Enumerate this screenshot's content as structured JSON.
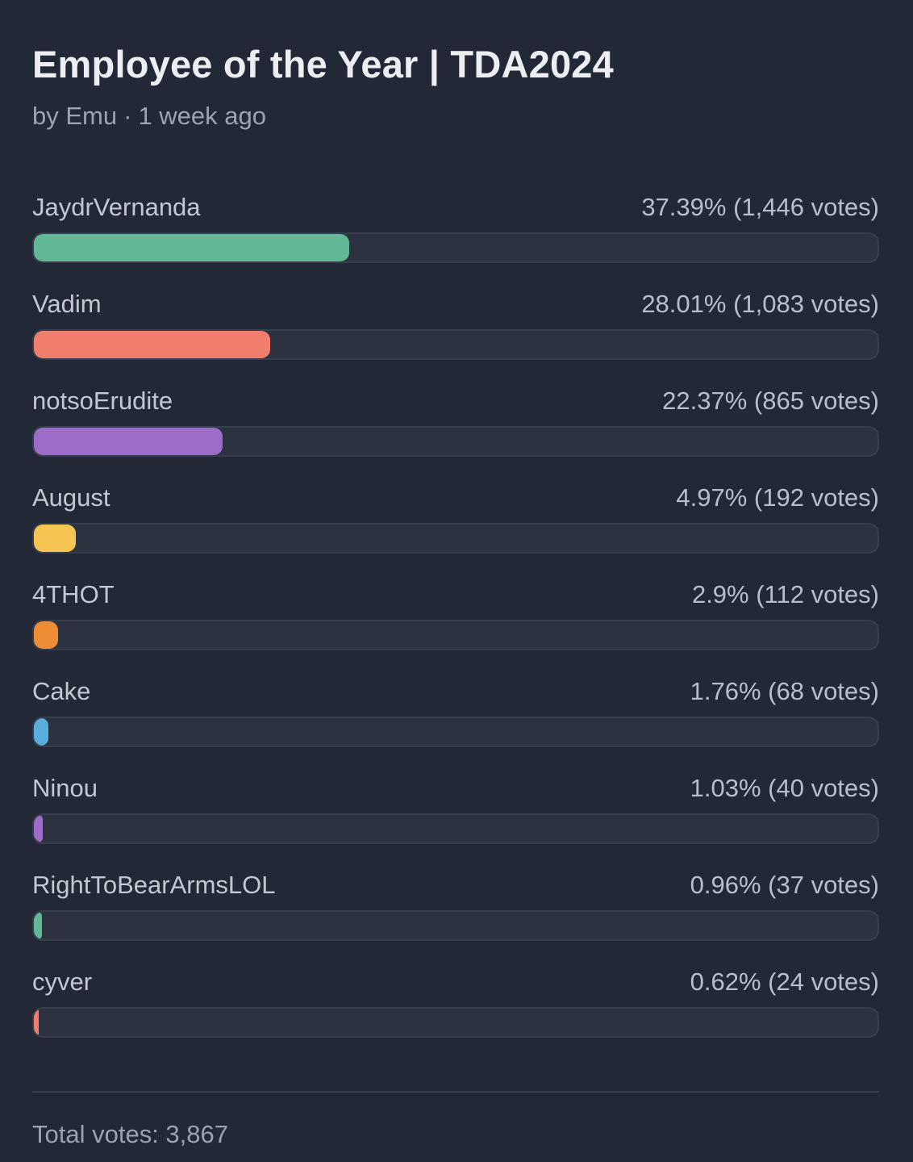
{
  "poll": {
    "title": "Employee of the Year | TDA2024",
    "author": "by Emu",
    "separator": "·",
    "time": "1 week ago",
    "total_label": "Total votes: 3,867"
  },
  "options": [
    {
      "name": "JaydrVernanda",
      "result": "37.39% (1,446 votes)",
      "percent": 37.39,
      "color": "#62b896"
    },
    {
      "name": "Vadim",
      "result": "28.01% (1,083 votes)",
      "percent": 28.01,
      "color": "#f07e6c"
    },
    {
      "name": "notsoErudite",
      "result": "22.37% (865 votes)",
      "percent": 22.37,
      "color": "#9d6bc8"
    },
    {
      "name": "August",
      "result": "4.97% (192 votes)",
      "percent": 4.97,
      "color": "#f6c453"
    },
    {
      "name": "4THOT",
      "result": "2.9% (112 votes)",
      "percent": 2.9,
      "color": "#ee8d36"
    },
    {
      "name": "Cake",
      "result": "1.76% (68 votes)",
      "percent": 1.76,
      "color": "#5aaedd"
    },
    {
      "name": "Ninou",
      "result": "1.03% (40 votes)",
      "percent": 1.03,
      "color": "#9d6bc8"
    },
    {
      "name": "RightToBearArmsLOL",
      "result": "0.96% (37 votes)",
      "percent": 0.96,
      "color": "#62b896"
    },
    {
      "name": "cyver",
      "result": "0.62% (24 votes)",
      "percent": 0.62,
      "color": "#f07e6c"
    }
  ]
}
